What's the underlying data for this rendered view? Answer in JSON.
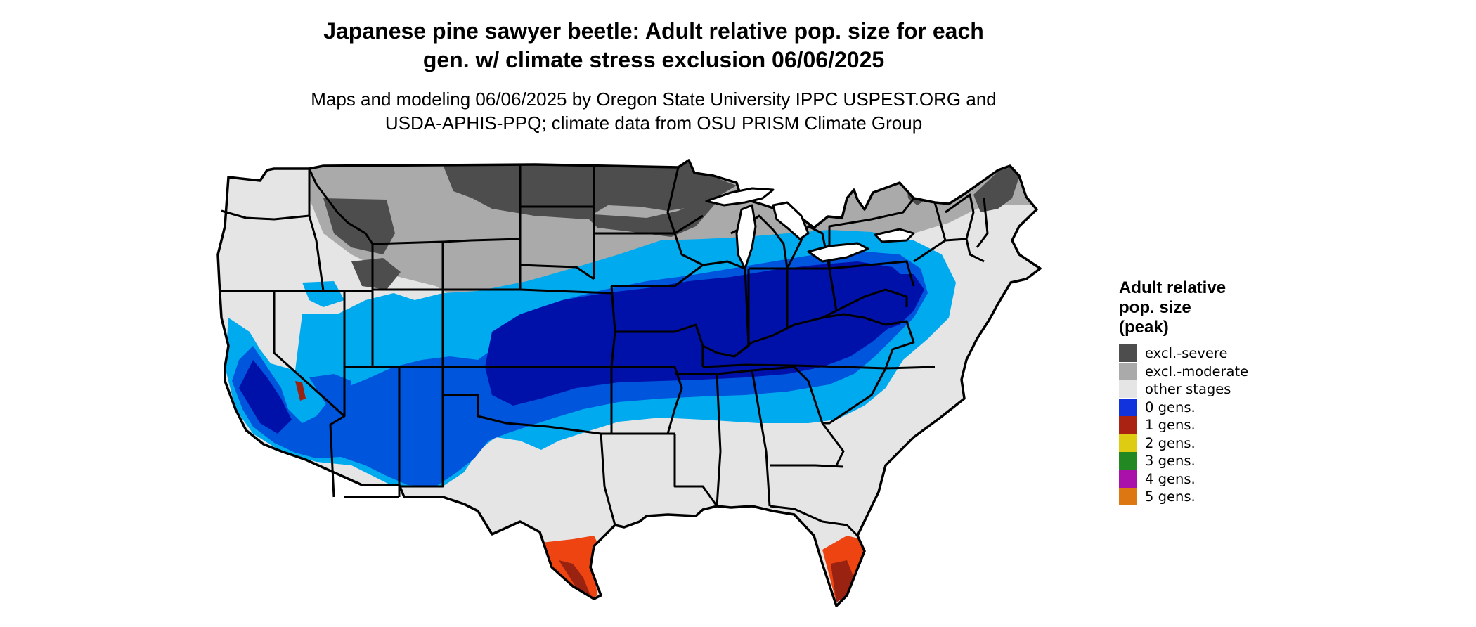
{
  "header": {
    "title_line1": "Japanese pine sawyer beetle: Adult relative pop. size for each",
    "title_line2": "gen. w/ climate stress exclusion 06/06/2025",
    "subtitle_line1": "Maps and modeling 06/06/2025 by Oregon State University IPPC USPEST.ORG and",
    "subtitle_line2": "USDA-APHIS-PPQ; climate data from OSU PRISM Climate Group"
  },
  "legend": {
    "title_line1": "Adult relative",
    "title_line2": "pop. size",
    "title_line3": "(peak)",
    "items": [
      {
        "label": "excl.-severe",
        "color": "#4d4d4d"
      },
      {
        "label": "excl.-moderate",
        "color": "#aaaaaa"
      },
      {
        "label": "other stages",
        "color": "#e5e5e5"
      },
      {
        "label": "0 gens.",
        "color": "#1133dd"
      },
      {
        "label": "1 gens.",
        "color": "#aa2211"
      },
      {
        "label": "2 gens.",
        "color": "#ddcc11"
      },
      {
        "label": "3 gens.",
        "color": "#228822"
      },
      {
        "label": "4 gens.",
        "color": "#aa11aa"
      },
      {
        "label": "5 gens.",
        "color": "#dd7711"
      }
    ]
  },
  "map": {
    "colors": {
      "light_blue": "#00aaee",
      "mid_blue": "#0055dd",
      "dark_blue": "#0011aa",
      "orange_red": "#ee4411",
      "dark_red": "#992211",
      "state_border": "#000000"
    }
  }
}
